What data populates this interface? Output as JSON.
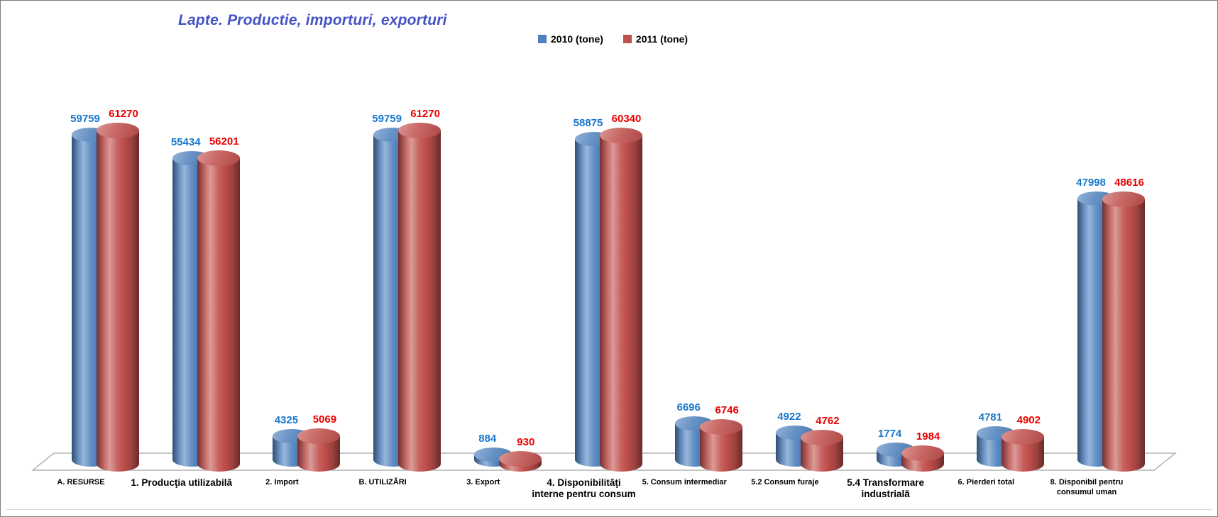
{
  "title": "Lapte. Productie, importuri, exporturi",
  "title_color": "#4353C6",
  "legend": {
    "items": [
      {
        "label": "2010 (tone)",
        "color": "#4F81BD"
      },
      {
        "label": "2011 (tone)",
        "color": "#C0504D"
      }
    ]
  },
  "chart_data": {
    "type": "bar",
    "subtype": "3d-cylinder",
    "title": "Lapte. Productie, importuri, exporturi",
    "categories": [
      "A. RESURSE",
      "1. Producţia utilizabilă",
      "2. Import",
      "B. UTILIZĂRI",
      "3. Export",
      "4. Disponibilităţi interne pentru consum",
      "5. Consum intermediar",
      "5.2 Consum furaje",
      "5.4 Transformare industrială",
      "6. Pierderi total",
      "8. Disponibil pentru consumul uman"
    ],
    "emphasized_categories": [
      1,
      5,
      8
    ],
    "series": [
      {
        "name": "2010 (tone)",
        "color": "#4F81BD",
        "label_color": "#1777CE",
        "values": [
          59759,
          55434,
          4325,
          59759,
          884,
          58875,
          6696,
          4922,
          1774,
          4781,
          47998
        ]
      },
      {
        "name": "2011 (tone)",
        "color": "#C0504D",
        "label_color": "#EA0000",
        "values": [
          61270,
          56201,
          5069,
          61270,
          930,
          60340,
          6746,
          4762,
          1984,
          4902,
          48616
        ]
      }
    ],
    "ylim": [
      0,
      61270
    ],
    "data_labels": true,
    "legend_position": "top",
    "grid": false,
    "xlabel": "",
    "ylabel": ""
  }
}
